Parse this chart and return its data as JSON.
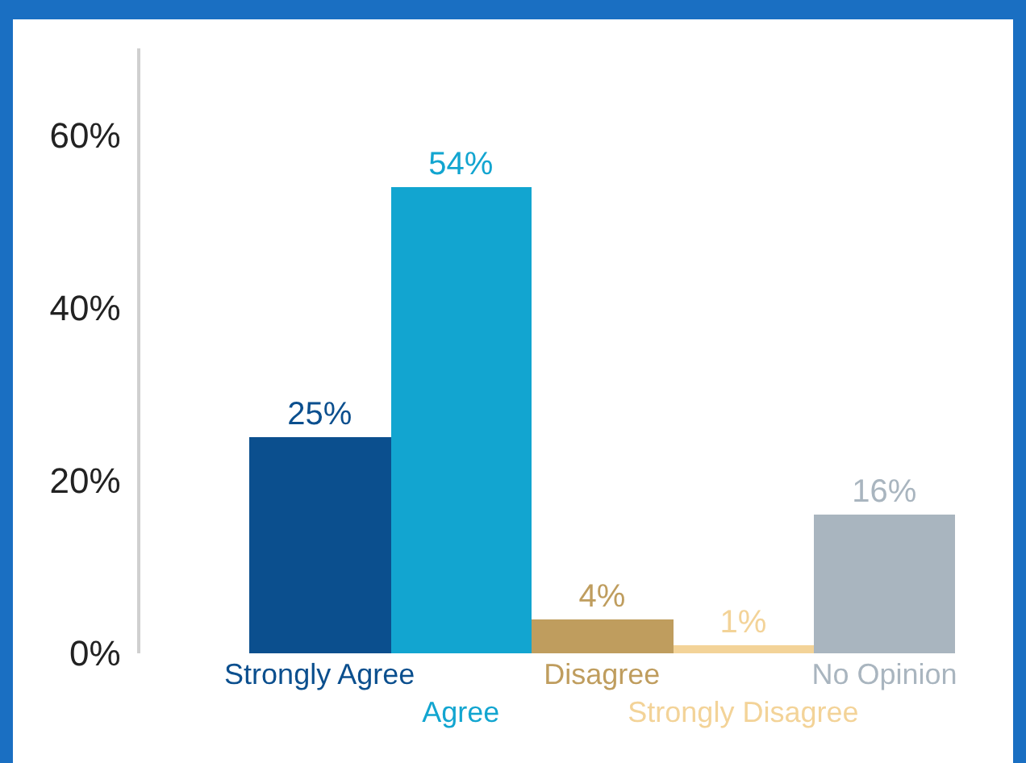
{
  "chart_data": {
    "type": "bar",
    "categories": [
      "Strongly Agree",
      "Agree",
      "Disagree",
      "Strongly Disagree",
      "No Opinion"
    ],
    "values": [
      25,
      54,
      4,
      1,
      16
    ],
    "colors": [
      "#0b4f8e",
      "#12a5d0",
      "#bf9d5e",
      "#f3d398",
      "#a9b5bf"
    ],
    "value_labels": [
      "25%",
      "54%",
      "4%",
      "1%",
      "16%"
    ],
    "ylim": [
      0,
      70
    ],
    "yticks": [
      {
        "value": 0,
        "label": "0%"
      },
      {
        "value": 20,
        "label": "20%"
      },
      {
        "value": 40,
        "label": "40%"
      },
      {
        "value": 60,
        "label": "60%"
      }
    ],
    "grid": false
  }
}
